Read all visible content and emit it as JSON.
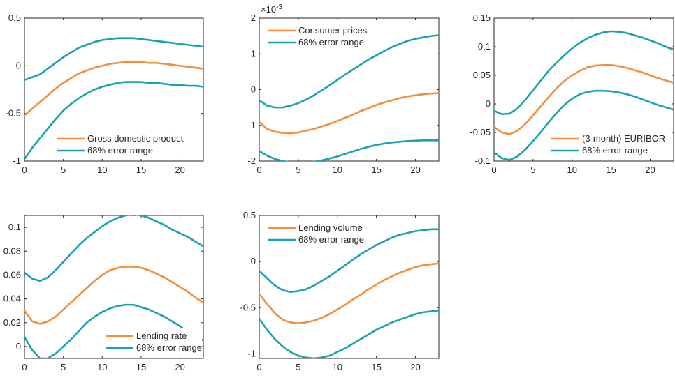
{
  "colors": {
    "response": "#F28E3C",
    "band": "#1AA3AE",
    "axis": "#262626"
  },
  "chart_data": [
    {
      "type": "line",
      "xlim": [
        0,
        23
      ],
      "ylim": [
        -1,
        0.5
      ],
      "xticks": [
        0,
        5,
        10,
        15,
        20
      ],
      "yticks": [
        -1,
        -0.5,
        0,
        0.5
      ],
      "ytick_labels": [
        "-1",
        "-0.5",
        "0",
        "0.5"
      ],
      "exponent_label": "",
      "legend_position": "bottom-right",
      "x": [
        0,
        1,
        2,
        3,
        4,
        5,
        6,
        7,
        8,
        9,
        10,
        11,
        12,
        13,
        14,
        15,
        16,
        17,
        18,
        19,
        20,
        21,
        22,
        23
      ],
      "series": [
        {
          "name": "Gross domestic product",
          "role": "response",
          "values": [
            -0.52,
            -0.45,
            -0.38,
            -0.31,
            -0.24,
            -0.18,
            -0.13,
            -0.08,
            -0.05,
            -0.02,
            0.0,
            0.02,
            0.03,
            0.04,
            0.04,
            0.04,
            0.03,
            0.03,
            0.02,
            0.01,
            0.0,
            -0.01,
            -0.02,
            -0.03
          ]
        },
        {
          "name": "68% error range",
          "role": "band-upper",
          "values": [
            -0.15,
            -0.12,
            -0.09,
            -0.03,
            0.03,
            0.09,
            0.14,
            0.19,
            0.22,
            0.25,
            0.27,
            0.28,
            0.29,
            0.29,
            0.29,
            0.28,
            0.27,
            0.26,
            0.25,
            0.24,
            0.23,
            0.22,
            0.21,
            0.2
          ]
        },
        {
          "name": "68% error range",
          "role": "band-lower",
          "values": [
            -0.98,
            -0.86,
            -0.76,
            -0.66,
            -0.56,
            -0.47,
            -0.4,
            -0.34,
            -0.29,
            -0.25,
            -0.22,
            -0.2,
            -0.18,
            -0.17,
            -0.17,
            -0.17,
            -0.18,
            -0.18,
            -0.19,
            -0.2,
            -0.2,
            -0.21,
            -0.21,
            -0.22
          ]
        }
      ]
    },
    {
      "type": "line",
      "xlim": [
        0,
        23
      ],
      "ylim": [
        -2,
        2
      ],
      "xticks": [
        0,
        5,
        10,
        15,
        20
      ],
      "yticks": [
        -2,
        -1,
        0,
        1,
        2
      ],
      "ytick_labels": [
        "-2",
        "-1",
        "0",
        "1",
        "2"
      ],
      "exponent_label": "×10",
      "exponent_value": "-3",
      "legend_position": "top-left",
      "x": [
        0,
        1,
        2,
        3,
        4,
        5,
        6,
        7,
        8,
        9,
        10,
        11,
        12,
        13,
        14,
        15,
        16,
        17,
        18,
        19,
        20,
        21,
        22,
        23
      ],
      "series": [
        {
          "name": "Consumer prices",
          "role": "response",
          "values": [
            -0.9,
            -1.1,
            -1.18,
            -1.21,
            -1.22,
            -1.2,
            -1.15,
            -1.1,
            -1.03,
            -0.96,
            -0.88,
            -0.79,
            -0.7,
            -0.6,
            -0.52,
            -0.43,
            -0.36,
            -0.3,
            -0.24,
            -0.19,
            -0.16,
            -0.13,
            -0.11,
            -0.1
          ]
        },
        {
          "name": "68% error range",
          "role": "band-upper",
          "values": [
            -0.3,
            -0.45,
            -0.5,
            -0.5,
            -0.45,
            -0.38,
            -0.28,
            -0.16,
            -0.02,
            0.12,
            0.27,
            0.42,
            0.56,
            0.7,
            0.84,
            0.96,
            1.08,
            1.19,
            1.28,
            1.36,
            1.42,
            1.46,
            1.5,
            1.52
          ]
        },
        {
          "name": "68% error range",
          "role": "band-lower",
          "values": [
            -1.72,
            -1.85,
            -1.94,
            -2.0,
            -2.03,
            -2.05,
            -2.04,
            -2.02,
            -1.98,
            -1.93,
            -1.87,
            -1.8,
            -1.73,
            -1.66,
            -1.6,
            -1.55,
            -1.51,
            -1.48,
            -1.46,
            -1.44,
            -1.43,
            -1.42,
            -1.42,
            -1.42
          ]
        }
      ]
    },
    {
      "type": "line",
      "xlim": [
        0,
        23
      ],
      "ylim": [
        -0.1,
        0.15
      ],
      "xticks": [
        0,
        5,
        10,
        15,
        20
      ],
      "yticks": [
        -0.1,
        -0.05,
        0,
        0.05,
        0.1,
        0.15
      ],
      "ytick_labels": [
        "-0.1",
        "-0.05",
        "0",
        "0.05",
        "0.1",
        "0.15"
      ],
      "exponent_label": "",
      "legend_position": "bottom-right",
      "x": [
        0,
        1,
        2,
        3,
        4,
        5,
        6,
        7,
        8,
        9,
        10,
        11,
        12,
        13,
        14,
        15,
        16,
        17,
        18,
        19,
        20,
        21,
        22,
        23
      ],
      "series": [
        {
          "name": "(3-month) EURIBOR",
          "role": "response",
          "values": [
            -0.04,
            -0.05,
            -0.053,
            -0.047,
            -0.035,
            -0.02,
            -0.004,
            0.012,
            0.027,
            0.04,
            0.05,
            0.058,
            0.064,
            0.067,
            0.068,
            0.068,
            0.066,
            0.063,
            0.059,
            0.055,
            0.05,
            0.045,
            0.041,
            0.037
          ]
        },
        {
          "name": "68% error range",
          "role": "band-upper",
          "values": [
            -0.012,
            -0.018,
            -0.017,
            -0.008,
            0.007,
            0.024,
            0.041,
            0.058,
            0.072,
            0.085,
            0.097,
            0.107,
            0.115,
            0.121,
            0.125,
            0.127,
            0.126,
            0.124,
            0.12,
            0.116,
            0.111,
            0.106,
            0.1,
            0.095
          ]
        },
        {
          "name": "68% error range",
          "role": "band-lower",
          "values": [
            -0.085,
            -0.095,
            -0.098,
            -0.092,
            -0.08,
            -0.065,
            -0.049,
            -0.032,
            -0.016,
            -0.002,
            0.009,
            0.017,
            0.021,
            0.023,
            0.023,
            0.022,
            0.02,
            0.017,
            0.013,
            0.008,
            0.003,
            -0.002,
            -0.006,
            -0.01
          ]
        }
      ]
    },
    {
      "type": "line",
      "xlim": [
        0,
        23
      ],
      "ylim": [
        -0.01,
        0.11
      ],
      "xticks": [
        0,
        5,
        10,
        15,
        20
      ],
      "yticks": [
        0,
        0.02,
        0.04,
        0.06,
        0.08,
        0.1
      ],
      "ytick_labels": [
        "0",
        "0.02",
        "0.04",
        "0.06",
        "0.08",
        "0.1"
      ],
      "exponent_label": "",
      "legend_position": "bottom-right",
      "x": [
        0,
        1,
        2,
        3,
        4,
        5,
        6,
        7,
        8,
        9,
        10,
        11,
        12,
        13,
        14,
        15,
        16,
        17,
        18,
        19,
        20,
        21,
        22,
        23
      ],
      "series": [
        {
          "name": "Lending rate",
          "role": "response",
          "values": [
            0.03,
            0.021,
            0.019,
            0.021,
            0.025,
            0.031,
            0.037,
            0.043,
            0.049,
            0.055,
            0.06,
            0.064,
            0.066,
            0.067,
            0.067,
            0.066,
            0.064,
            0.061,
            0.058,
            0.054,
            0.05,
            0.046,
            0.041,
            0.037
          ]
        },
        {
          "name": "68% error range",
          "role": "band-upper",
          "values": [
            0.062,
            0.057,
            0.055,
            0.058,
            0.064,
            0.071,
            0.078,
            0.085,
            0.091,
            0.096,
            0.101,
            0.105,
            0.108,
            0.11,
            0.111,
            0.11,
            0.108,
            0.105,
            0.102,
            0.098,
            0.095,
            0.092,
            0.088,
            0.084
          ]
        },
        {
          "name": "68% error range",
          "role": "band-lower",
          "values": [
            0.008,
            -0.003,
            -0.01,
            -0.01,
            -0.006,
            0.0,
            0.006,
            0.013,
            0.02,
            0.025,
            0.029,
            0.032,
            0.034,
            0.035,
            0.035,
            0.033,
            0.031,
            0.028,
            0.025,
            0.021,
            0.017,
            0.012,
            0.008,
            0.005
          ]
        }
      ]
    },
    {
      "type": "line",
      "xlim": [
        0,
        23
      ],
      "ylim": [
        -1.05,
        0.5
      ],
      "xticks": [
        0,
        5,
        10,
        15,
        20
      ],
      "yticks": [
        -1,
        -0.5,
        0,
        0.5
      ],
      "ytick_labels": [
        "-1",
        "-0.5",
        "0",
        "0.5"
      ],
      "exponent_label": "",
      "legend_position": "top-left",
      "x": [
        0,
        1,
        2,
        3,
        4,
        5,
        6,
        7,
        8,
        9,
        10,
        11,
        12,
        13,
        14,
        15,
        16,
        17,
        18,
        19,
        20,
        21,
        22,
        23
      ],
      "series": [
        {
          "name": "Lending volume",
          "role": "response",
          "values": [
            -0.35,
            -0.46,
            -0.56,
            -0.63,
            -0.66,
            -0.67,
            -0.66,
            -0.64,
            -0.61,
            -0.57,
            -0.52,
            -0.47,
            -0.41,
            -0.36,
            -0.3,
            -0.25,
            -0.2,
            -0.16,
            -0.12,
            -0.09,
            -0.06,
            -0.04,
            -0.03,
            -0.02
          ]
        },
        {
          "name": "68% error range",
          "role": "band-upper",
          "values": [
            -0.1,
            -0.18,
            -0.26,
            -0.31,
            -0.33,
            -0.32,
            -0.3,
            -0.26,
            -0.21,
            -0.16,
            -0.1,
            -0.04,
            0.02,
            0.08,
            0.13,
            0.18,
            0.22,
            0.26,
            0.29,
            0.31,
            0.33,
            0.34,
            0.35,
            0.35
          ]
        },
        {
          "name": "68% error range",
          "role": "band-lower",
          "values": [
            -0.62,
            -0.74,
            -0.84,
            -0.92,
            -0.98,
            -1.02,
            -1.04,
            -1.05,
            -1.04,
            -1.02,
            -0.98,
            -0.94,
            -0.89,
            -0.84,
            -0.79,
            -0.74,
            -0.7,
            -0.66,
            -0.63,
            -0.6,
            -0.57,
            -0.55,
            -0.54,
            -0.53
          ]
        }
      ]
    }
  ]
}
